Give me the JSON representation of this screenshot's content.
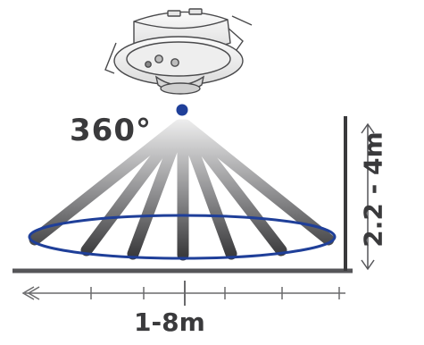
{
  "diagram": {
    "detection_angle_label": "360°",
    "detection_range_label": "1-8m",
    "mounting_height_label": "2.2 - 4m"
  },
  "colors": {
    "beam_gradient_top": "#f2f2f2",
    "beam_gradient_bottom": "#3b3b3d",
    "coverage_ellipse": "#1f3f99",
    "sensor_dot": "#1f3f99",
    "lines": "#555558",
    "text": "#3a3a3c"
  },
  "icons": {
    "sensor_device": "ceiling-pir-motion-sensor-icon",
    "range_arrow": "left-arrow-icon",
    "height_arrow": "double-vertical-arrow-icon"
  }
}
